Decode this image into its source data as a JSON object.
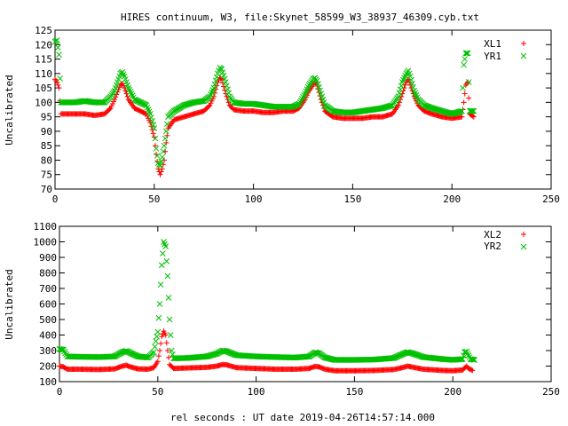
{
  "title": "HIRES continuum, W3, file:Skynet_58599_W3_38937_46309.cyb.txt",
  "xlabel": "rel seconds : UT date 2019-04-26T14:57:14.000",
  "colors": {
    "red": "#ff0000",
    "green": "#00c000"
  },
  "chart_data": [
    {
      "type": "scatter",
      "ylabel": "Uncalibrated",
      "xlim": [
        0,
        250
      ],
      "ylim": [
        70,
        125
      ],
      "xticks": [
        0,
        50,
        100,
        150,
        200,
        250
      ],
      "yticks": [
        70,
        75,
        80,
        85,
        90,
        95,
        100,
        105,
        110,
        115,
        120,
        125
      ],
      "legend_position": "top-right",
      "series": [
        {
          "name": "XL1",
          "marker": "plus",
          "color": "#ff0000",
          "points": [
            [
              0,
              108
            ],
            [
              1,
              107
            ],
            [
              2,
              105
            ],
            [
              3,
              96
            ],
            [
              6,
              96
            ],
            [
              10,
              96
            ],
            [
              15,
              96
            ],
            [
              20,
              95.5
            ],
            [
              25,
              96
            ],
            [
              28,
              98
            ],
            [
              30,
              101
            ],
            [
              32,
              104.5
            ],
            [
              33,
              106
            ],
            [
              34,
              106.5
            ],
            [
              35,
              105
            ],
            [
              37,
              101
            ],
            [
              40,
              98
            ],
            [
              43,
              97
            ],
            [
              46,
              96
            ],
            [
              48,
              93
            ],
            [
              50,
              88
            ],
            [
              51,
              82
            ],
            [
              52,
              77
            ],
            [
              53,
              75
            ],
            [
              54,
              77
            ],
            [
              55,
              80
            ],
            [
              56,
              86
            ],
            [
              57,
              91
            ],
            [
              60,
              94
            ],
            [
              65,
              95
            ],
            [
              70,
              96
            ],
            [
              75,
              97
            ],
            [
              78,
              99
            ],
            [
              80,
              102
            ],
            [
              82,
              107
            ],
            [
              83,
              108.5
            ],
            [
              84,
              108
            ],
            [
              86,
              103
            ],
            [
              88,
              99
            ],
            [
              90,
              97.5
            ],
            [
              95,
              97
            ],
            [
              100,
              97
            ],
            [
              105,
              96.5
            ],
            [
              110,
              96.5
            ],
            [
              115,
              97
            ],
            [
              120,
              97
            ],
            [
              123,
              98
            ],
            [
              126,
              101
            ],
            [
              128,
              104
            ],
            [
              130,
              106
            ],
            [
              131,
              107
            ],
            [
              132,
              106
            ],
            [
              134,
              101
            ],
            [
              136,
              97
            ],
            [
              140,
              95
            ],
            [
              145,
              94.5
            ],
            [
              150,
              94.5
            ],
            [
              155,
              94.5
            ],
            [
              160,
              95
            ],
            [
              165,
              95
            ],
            [
              170,
              96
            ],
            [
              173,
              99
            ],
            [
              175,
              103
            ],
            [
              177,
              107
            ],
            [
              178,
              108
            ],
            [
              179,
              106
            ],
            [
              181,
              102
            ],
            [
              183,
              99
            ],
            [
              186,
              97
            ],
            [
              190,
              96
            ],
            [
              195,
              95
            ],
            [
              200,
              94.5
            ],
            [
              205,
              95
            ],
            [
              206,
              100
            ],
            [
              207,
              106
            ],
            [
              208,
              107
            ],
            [
              209,
              96
            ],
            [
              211,
              95
            ]
          ]
        },
        {
          "name": "YR1",
          "marker": "cross",
          "color": "#00c000",
          "points": [
            [
              0,
              121
            ],
            [
              1,
              121.5
            ],
            [
              2,
              116.5
            ],
            [
              3,
              100
            ],
            [
              6,
              100
            ],
            [
              10,
              100
            ],
            [
              15,
              100.5
            ],
            [
              20,
              100
            ],
            [
              25,
              100
            ],
            [
              28,
              102
            ],
            [
              30,
              104
            ],
            [
              32,
              108
            ],
            [
              33,
              110
            ],
            [
              34,
              110.5
            ],
            [
              35,
              109
            ],
            [
              37,
              105
            ],
            [
              40,
              101
            ],
            [
              43,
              100
            ],
            [
              46,
              99
            ],
            [
              48,
              96
            ],
            [
              50,
              91
            ],
            [
              51,
              84
            ],
            [
              52,
              79
            ],
            [
              53,
              78
            ],
            [
              54,
              81
            ],
            [
              55,
              85
            ],
            [
              56,
              90
            ],
            [
              57,
              95
            ],
            [
              60,
              97
            ],
            [
              65,
              99
            ],
            [
              70,
              100
            ],
            [
              75,
              100.5
            ],
            [
              78,
              102
            ],
            [
              80,
              105
            ],
            [
              82,
              110
            ],
            [
              83,
              112
            ],
            [
              84,
              111.5
            ],
            [
              86,
              107
            ],
            [
              88,
              102
            ],
            [
              90,
              100
            ],
            [
              95,
              99.5
            ],
            [
              100,
              99.5
            ],
            [
              105,
              99
            ],
            [
              110,
              98.5
            ],
            [
              115,
              98.5
            ],
            [
              120,
              98.5
            ],
            [
              123,
              99.5
            ],
            [
              126,
              103
            ],
            [
              128,
              106
            ],
            [
              130,
              108
            ],
            [
              131,
              108.5
            ],
            [
              132,
              107.5
            ],
            [
              134,
              103
            ],
            [
              136,
              99
            ],
            [
              140,
              97
            ],
            [
              145,
              96.5
            ],
            [
              150,
              96.5
            ],
            [
              155,
              97
            ],
            [
              160,
              97.5
            ],
            [
              165,
              98
            ],
            [
              170,
              99
            ],
            [
              173,
              102
            ],
            [
              175,
              107
            ],
            [
              177,
              110
            ],
            [
              178,
              111
            ],
            [
              179,
              109
            ],
            [
              181,
              104
            ],
            [
              183,
              101
            ],
            [
              186,
              99
            ],
            [
              190,
              98
            ],
            [
              195,
              97
            ],
            [
              200,
              96
            ],
            [
              205,
              97
            ],
            [
              206,
              113
            ],
            [
              207,
              117
            ],
            [
              208,
              117
            ],
            [
              209,
              97
            ],
            [
              211,
              97
            ]
          ]
        }
      ]
    },
    {
      "type": "scatter",
      "ylabel": "Uncalibrated",
      "xlim": [
        0,
        250
      ],
      "ylim": [
        100,
        1100
      ],
      "xticks": [
        0,
        50,
        100,
        150,
        200,
        250
      ],
      "yticks": [
        100,
        200,
        300,
        400,
        500,
        600,
        700,
        800,
        900,
        1000,
        1100
      ],
      "legend_position": "top-right",
      "series": [
        {
          "name": "XL2",
          "marker": "plus",
          "color": "#ff0000",
          "points": [
            [
              0,
              200
            ],
            [
              2,
              195
            ],
            [
              4,
              180
            ],
            [
              10,
              180
            ],
            [
              20,
              178
            ],
            [
              28,
              182
            ],
            [
              32,
              200
            ],
            [
              34,
              205
            ],
            [
              36,
              195
            ],
            [
              40,
              182
            ],
            [
              45,
              180
            ],
            [
              48,
              190
            ],
            [
              50,
              230
            ],
            [
              51,
              300
            ],
            [
              52,
              390
            ],
            [
              53,
              425
            ],
            [
              54,
              400
            ],
            [
              55,
              300
            ],
            [
              56,
              210
            ],
            [
              58,
              185
            ],
            [
              65,
              188
            ],
            [
              75,
              192
            ],
            [
              80,
              200
            ],
            [
              83,
              210
            ],
            [
              85,
              208
            ],
            [
              90,
              190
            ],
            [
              100,
              185
            ],
            [
              110,
              180
            ],
            [
              120,
              180
            ],
            [
              127,
              185
            ],
            [
              130,
              198
            ],
            [
              132,
              195
            ],
            [
              135,
              180
            ],
            [
              140,
              170
            ],
            [
              150,
              170
            ],
            [
              160,
              172
            ],
            [
              170,
              178
            ],
            [
              175,
              192
            ],
            [
              177,
              200
            ],
            [
              180,
              192
            ],
            [
              185,
              180
            ],
            [
              195,
              172
            ],
            [
              200,
              170
            ],
            [
              205,
              175
            ],
            [
              207,
              200
            ],
            [
              208,
              185
            ],
            [
              210,
              172
            ]
          ]
        },
        {
          "name": "YR2",
          "marker": "cross",
          "color": "#00c000",
          "points": [
            [
              0,
              310
            ],
            [
              2,
              305
            ],
            [
              4,
              262
            ],
            [
              10,
              260
            ],
            [
              20,
              258
            ],
            [
              28,
              262
            ],
            [
              32,
              290
            ],
            [
              34,
              298
            ],
            [
              36,
              285
            ],
            [
              40,
              262
            ],
            [
              45,
              255
            ],
            [
              48,
              290
            ],
            [
              49,
              360
            ],
            [
              50,
              420
            ],
            [
              51,
              600
            ],
            [
              52,
              850
            ],
            [
              53,
              1000
            ],
            [
              54,
              970
            ],
            [
              55,
              780
            ],
            [
              56,
              500
            ],
            [
              57,
              300
            ],
            [
              58,
              250
            ],
            [
              65,
              252
            ],
            [
              75,
              262
            ],
            [
              80,
              280
            ],
            [
              83,
              300
            ],
            [
              85,
              295
            ],
            [
              90,
              270
            ],
            [
              100,
              262
            ],
            [
              110,
              258
            ],
            [
              120,
              255
            ],
            [
              127,
              262
            ],
            [
              130,
              288
            ],
            [
              132,
              282
            ],
            [
              135,
              255
            ],
            [
              140,
              240
            ],
            [
              150,
              240
            ],
            [
              160,
              242
            ],
            [
              170,
              252
            ],
            [
              175,
              280
            ],
            [
              177,
              290
            ],
            [
              180,
              280
            ],
            [
              185,
              258
            ],
            [
              195,
              245
            ],
            [
              200,
              240
            ],
            [
              205,
              245
            ],
            [
              206,
              290
            ],
            [
              207,
              292
            ],
            [
              209,
              245
            ],
            [
              211,
              240
            ]
          ]
        }
      ]
    }
  ]
}
